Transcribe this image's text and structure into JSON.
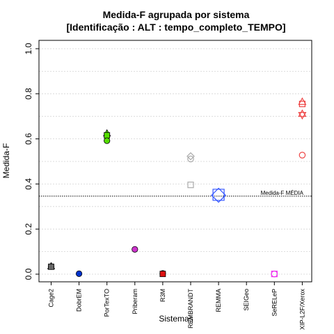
{
  "chart_data": {
    "type": "scatter",
    "title": "Medida-F agrupada por sistema",
    "subtitle": "[Identificação : ALT : tempo_completo_TEMPO]",
    "xlabel": "Sistemas",
    "ylabel": "Medida-F",
    "ylim": [
      0,
      1
    ],
    "yticks": [
      "0.0",
      "0.2",
      "0.4",
      "0.6",
      "0.8",
      "1.0"
    ],
    "grid": "horizontal dotted",
    "categories": [
      "Cage2",
      "DobrEM",
      "PorTexTO",
      "Priberam",
      "R3M",
      "REMBRANDT",
      "REMMA",
      "SEIGeo",
      "SeRELeP",
      "XIP-L2F/Xerox"
    ],
    "reference_line": {
      "label": "Medida-F MÉDIA",
      "value": 0.346
    },
    "series": [
      {
        "category": "Cage2",
        "color": "#666666",
        "points": [
          {
            "y": 0.036,
            "shape": "triangle-up",
            "filled": true
          },
          {
            "y": 0.034,
            "shape": "circle",
            "filled": true
          },
          {
            "y": 0.033,
            "shape": "square",
            "filled": true
          }
        ]
      },
      {
        "category": "DobrEM",
        "color": "#0033cc",
        "points": [
          {
            "y": 0.002,
            "shape": "circle",
            "filled": true
          }
        ]
      },
      {
        "category": "PorTexTO",
        "color": "#55dd00",
        "points": [
          {
            "y": 0.625,
            "shape": "triangle-up",
            "filled": true
          },
          {
            "y": 0.616,
            "shape": "square",
            "filled": true
          },
          {
            "y": 0.592,
            "shape": "circle",
            "filled": true
          }
        ]
      },
      {
        "category": "Priberam",
        "color": "#cc33cc",
        "points": [
          {
            "y": 0.11,
            "shape": "circle",
            "filled": true
          }
        ]
      },
      {
        "category": "R3M",
        "color": "#dd1111",
        "points": [
          {
            "y": 0.003,
            "shape": "circle",
            "filled": true
          },
          {
            "y": 0.001,
            "shape": "square",
            "filled": true
          }
        ]
      },
      {
        "category": "REMBRANDT",
        "color": "#aaaaaa",
        "points": [
          {
            "y": 0.523,
            "shape": "diamond",
            "filled": false
          },
          {
            "y": 0.511,
            "shape": "circle",
            "filled": false
          },
          {
            "y": 0.396,
            "shape": "square",
            "filled": false
          }
        ]
      },
      {
        "category": "REMMA",
        "color": "#3355ff",
        "points": [
          {
            "y": 0.35,
            "shape": "diamond-large",
            "filled": false
          },
          {
            "y": 0.352,
            "shape": "star-large",
            "filled": false
          }
        ]
      },
      {
        "category": "SEIGeo",
        "color": "#000000",
        "points": []
      },
      {
        "category": "SeRELeP",
        "color": "#ee33ee",
        "points": [
          {
            "y": 0.001,
            "shape": "square",
            "filled": false
          },
          {
            "y": 0.001,
            "shape": "circle",
            "filled": false
          }
        ]
      },
      {
        "category": "XIP-L2F/Xerox",
        "color": "#ee4444",
        "points": [
          {
            "y": 0.765,
            "shape": "triangle-up",
            "filled": false
          },
          {
            "y": 0.755,
            "shape": "square",
            "filled": false
          },
          {
            "y": 0.712,
            "shape": "triangle-up",
            "filled": false
          },
          {
            "y": 0.705,
            "shape": "triangle-down",
            "filled": false
          },
          {
            "y": 0.528,
            "shape": "circle",
            "filled": false
          }
        ]
      }
    ]
  }
}
